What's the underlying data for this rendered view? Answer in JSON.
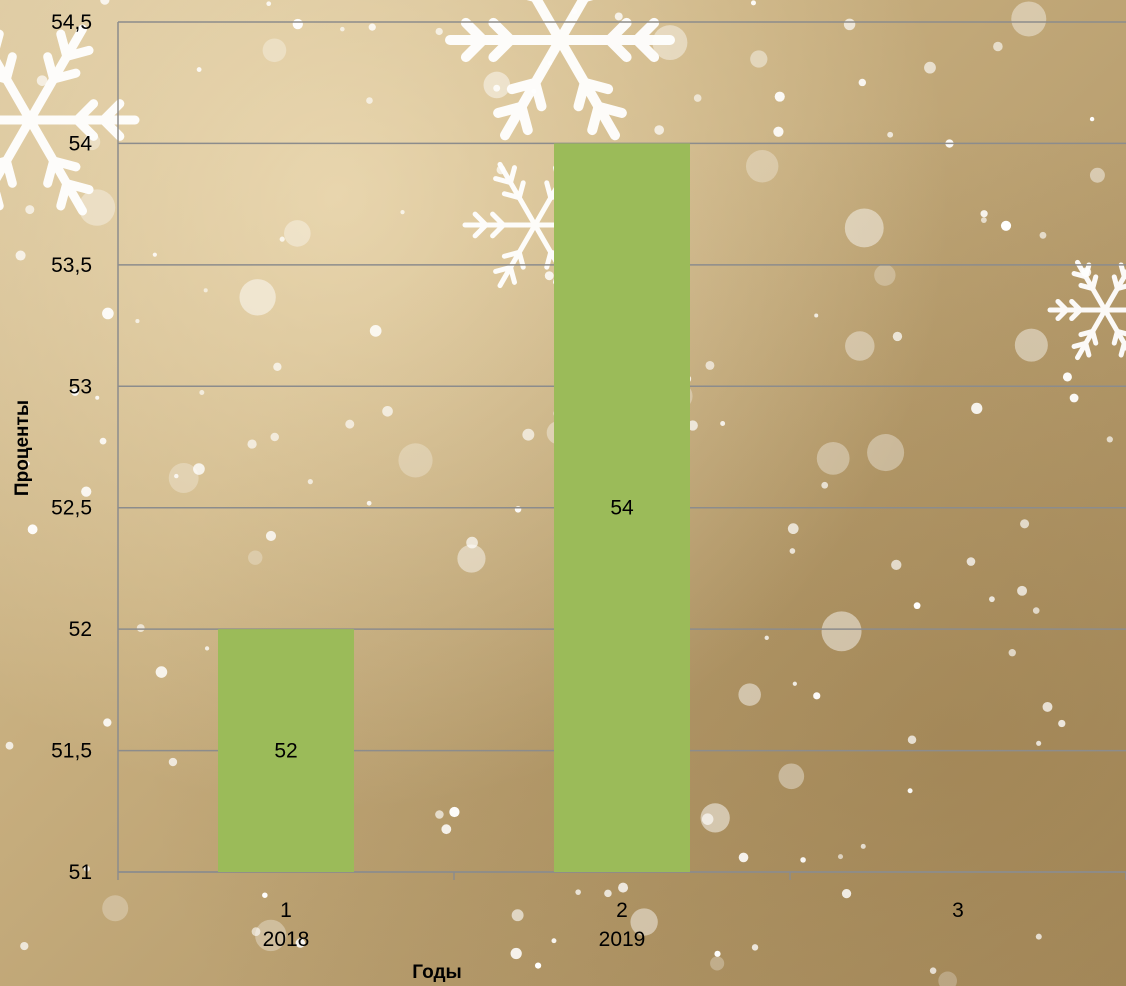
{
  "chart_data": {
    "type": "bar",
    "categories": [
      {
        "index": "1",
        "year": "2018"
      },
      {
        "index": "2",
        "year": "2019"
      },
      {
        "index": "3",
        "year": ""
      }
    ],
    "values": [
      52,
      54,
      null
    ],
    "data_labels": [
      "52",
      "54",
      ""
    ],
    "xlabel": "Годы",
    "ylabel": "Проценты",
    "ylim": [
      51,
      54.5
    ],
    "yticks": [
      "51",
      "51,5",
      "52",
      "52,5",
      "53",
      "53,5",
      "54",
      "54,5"
    ],
    "ytick_values": [
      51,
      51.5,
      52,
      52.5,
      53,
      53.5,
      54,
      54.5
    ],
    "grid": true,
    "legend": "none",
    "bar_color": "#9bbb59",
    "gridline_color": "#8c8c8c"
  }
}
